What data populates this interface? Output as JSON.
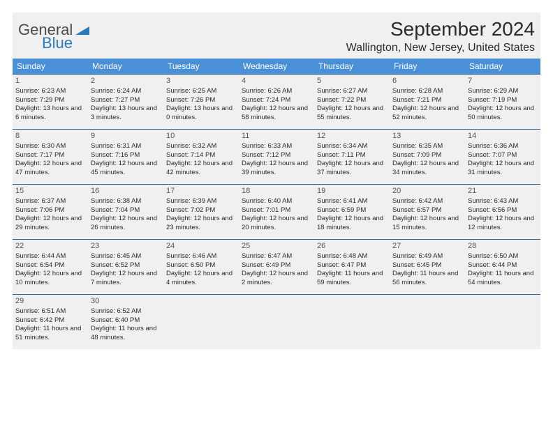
{
  "logo": {
    "main": "General",
    "blue": "Blue"
  },
  "title": "September 2024",
  "location": "Wallington, New Jersey, United States",
  "colors": {
    "header_bg": "#4a90d9",
    "header_text": "#ffffff",
    "row_border": "#2b5f8f",
    "page_bg": "#f0f0f0",
    "text": "#2b2b2b",
    "daynum": "#555555"
  },
  "days_of_week": [
    "Sunday",
    "Monday",
    "Tuesday",
    "Wednesday",
    "Thursday",
    "Friday",
    "Saturday"
  ],
  "weeks": [
    [
      {
        "num": "1",
        "sunrise": "Sunrise: 6:23 AM",
        "sunset": "Sunset: 7:29 PM",
        "daylight": "Daylight: 13 hours and 6 minutes."
      },
      {
        "num": "2",
        "sunrise": "Sunrise: 6:24 AM",
        "sunset": "Sunset: 7:27 PM",
        "daylight": "Daylight: 13 hours and 3 minutes."
      },
      {
        "num": "3",
        "sunrise": "Sunrise: 6:25 AM",
        "sunset": "Sunset: 7:26 PM",
        "daylight": "Daylight: 13 hours and 0 minutes."
      },
      {
        "num": "4",
        "sunrise": "Sunrise: 6:26 AM",
        "sunset": "Sunset: 7:24 PM",
        "daylight": "Daylight: 12 hours and 58 minutes."
      },
      {
        "num": "5",
        "sunrise": "Sunrise: 6:27 AM",
        "sunset": "Sunset: 7:22 PM",
        "daylight": "Daylight: 12 hours and 55 minutes."
      },
      {
        "num": "6",
        "sunrise": "Sunrise: 6:28 AM",
        "sunset": "Sunset: 7:21 PM",
        "daylight": "Daylight: 12 hours and 52 minutes."
      },
      {
        "num": "7",
        "sunrise": "Sunrise: 6:29 AM",
        "sunset": "Sunset: 7:19 PM",
        "daylight": "Daylight: 12 hours and 50 minutes."
      }
    ],
    [
      {
        "num": "8",
        "sunrise": "Sunrise: 6:30 AM",
        "sunset": "Sunset: 7:17 PM",
        "daylight": "Daylight: 12 hours and 47 minutes."
      },
      {
        "num": "9",
        "sunrise": "Sunrise: 6:31 AM",
        "sunset": "Sunset: 7:16 PM",
        "daylight": "Daylight: 12 hours and 45 minutes."
      },
      {
        "num": "10",
        "sunrise": "Sunrise: 6:32 AM",
        "sunset": "Sunset: 7:14 PM",
        "daylight": "Daylight: 12 hours and 42 minutes."
      },
      {
        "num": "11",
        "sunrise": "Sunrise: 6:33 AM",
        "sunset": "Sunset: 7:12 PM",
        "daylight": "Daylight: 12 hours and 39 minutes."
      },
      {
        "num": "12",
        "sunrise": "Sunrise: 6:34 AM",
        "sunset": "Sunset: 7:11 PM",
        "daylight": "Daylight: 12 hours and 37 minutes."
      },
      {
        "num": "13",
        "sunrise": "Sunrise: 6:35 AM",
        "sunset": "Sunset: 7:09 PM",
        "daylight": "Daylight: 12 hours and 34 minutes."
      },
      {
        "num": "14",
        "sunrise": "Sunrise: 6:36 AM",
        "sunset": "Sunset: 7:07 PM",
        "daylight": "Daylight: 12 hours and 31 minutes."
      }
    ],
    [
      {
        "num": "15",
        "sunrise": "Sunrise: 6:37 AM",
        "sunset": "Sunset: 7:06 PM",
        "daylight": "Daylight: 12 hours and 29 minutes."
      },
      {
        "num": "16",
        "sunrise": "Sunrise: 6:38 AM",
        "sunset": "Sunset: 7:04 PM",
        "daylight": "Daylight: 12 hours and 26 minutes."
      },
      {
        "num": "17",
        "sunrise": "Sunrise: 6:39 AM",
        "sunset": "Sunset: 7:02 PM",
        "daylight": "Daylight: 12 hours and 23 minutes."
      },
      {
        "num": "18",
        "sunrise": "Sunrise: 6:40 AM",
        "sunset": "Sunset: 7:01 PM",
        "daylight": "Daylight: 12 hours and 20 minutes."
      },
      {
        "num": "19",
        "sunrise": "Sunrise: 6:41 AM",
        "sunset": "Sunset: 6:59 PM",
        "daylight": "Daylight: 12 hours and 18 minutes."
      },
      {
        "num": "20",
        "sunrise": "Sunrise: 6:42 AM",
        "sunset": "Sunset: 6:57 PM",
        "daylight": "Daylight: 12 hours and 15 minutes."
      },
      {
        "num": "21",
        "sunrise": "Sunrise: 6:43 AM",
        "sunset": "Sunset: 6:56 PM",
        "daylight": "Daylight: 12 hours and 12 minutes."
      }
    ],
    [
      {
        "num": "22",
        "sunrise": "Sunrise: 6:44 AM",
        "sunset": "Sunset: 6:54 PM",
        "daylight": "Daylight: 12 hours and 10 minutes."
      },
      {
        "num": "23",
        "sunrise": "Sunrise: 6:45 AM",
        "sunset": "Sunset: 6:52 PM",
        "daylight": "Daylight: 12 hours and 7 minutes."
      },
      {
        "num": "24",
        "sunrise": "Sunrise: 6:46 AM",
        "sunset": "Sunset: 6:50 PM",
        "daylight": "Daylight: 12 hours and 4 minutes."
      },
      {
        "num": "25",
        "sunrise": "Sunrise: 6:47 AM",
        "sunset": "Sunset: 6:49 PM",
        "daylight": "Daylight: 12 hours and 2 minutes."
      },
      {
        "num": "26",
        "sunrise": "Sunrise: 6:48 AM",
        "sunset": "Sunset: 6:47 PM",
        "daylight": "Daylight: 11 hours and 59 minutes."
      },
      {
        "num": "27",
        "sunrise": "Sunrise: 6:49 AM",
        "sunset": "Sunset: 6:45 PM",
        "daylight": "Daylight: 11 hours and 56 minutes."
      },
      {
        "num": "28",
        "sunrise": "Sunrise: 6:50 AM",
        "sunset": "Sunset: 6:44 PM",
        "daylight": "Daylight: 11 hours and 54 minutes."
      }
    ],
    [
      {
        "num": "29",
        "sunrise": "Sunrise: 6:51 AM",
        "sunset": "Sunset: 6:42 PM",
        "daylight": "Daylight: 11 hours and 51 minutes."
      },
      {
        "num": "30",
        "sunrise": "Sunrise: 6:52 AM",
        "sunset": "Sunset: 6:40 PM",
        "daylight": "Daylight: 11 hours and 48 minutes."
      },
      {
        "num": "",
        "sunrise": "",
        "sunset": "",
        "daylight": ""
      },
      {
        "num": "",
        "sunrise": "",
        "sunset": "",
        "daylight": ""
      },
      {
        "num": "",
        "sunrise": "",
        "sunset": "",
        "daylight": ""
      },
      {
        "num": "",
        "sunrise": "",
        "sunset": "",
        "daylight": ""
      },
      {
        "num": "",
        "sunrise": "",
        "sunset": "",
        "daylight": ""
      }
    ]
  ]
}
